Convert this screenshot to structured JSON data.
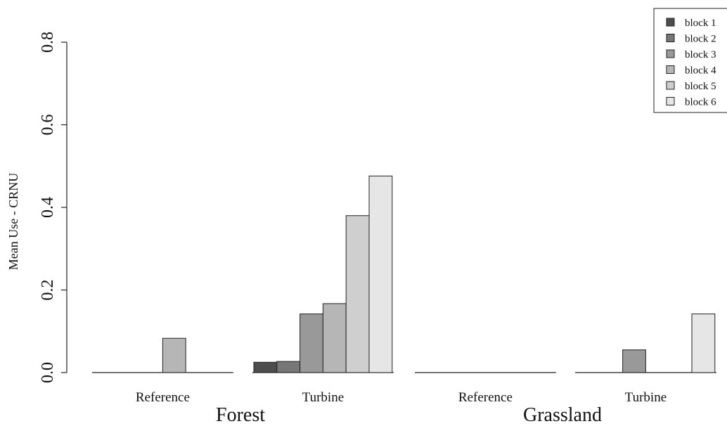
{
  "chart_data": {
    "type": "bar",
    "title": "",
    "ylabel": "Mean Use - CRNU",
    "ylim": [
      0,
      0.8
    ],
    "yticks": [
      "0.0",
      "0.2",
      "0.4",
      "0.6",
      "0.8"
    ],
    "grid": false,
    "legend_position": "top-right",
    "groups": [
      {
        "name": "Forest",
        "subgroups": [
          "Reference",
          "Turbine"
        ]
      },
      {
        "name": "Grassland",
        "subgroups": [
          "Reference",
          "Turbine"
        ]
      }
    ],
    "categories": [
      "Reference",
      "Turbine",
      "Reference",
      "Turbine"
    ],
    "series": [
      {
        "name": "block 1",
        "color": "#4d4d4d",
        "values": [
          0,
          0.025,
          0,
          0
        ]
      },
      {
        "name": "block 2",
        "color": "#777777",
        "values": [
          0,
          0.027,
          0,
          0
        ]
      },
      {
        "name": "block 3",
        "color": "#999999",
        "values": [
          0,
          0.142,
          0,
          0.055
        ]
      },
      {
        "name": "block 4",
        "color": "#b6b6b6",
        "values": [
          0.083,
          0.167,
          0,
          0
        ]
      },
      {
        "name": "block 5",
        "color": "#cfcfcf",
        "values": [
          0,
          0.38,
          0,
          0
        ]
      },
      {
        "name": "block 6",
        "color": "#e6e6e6",
        "values": [
          0,
          0.476,
          0,
          0.142
        ]
      }
    ]
  }
}
